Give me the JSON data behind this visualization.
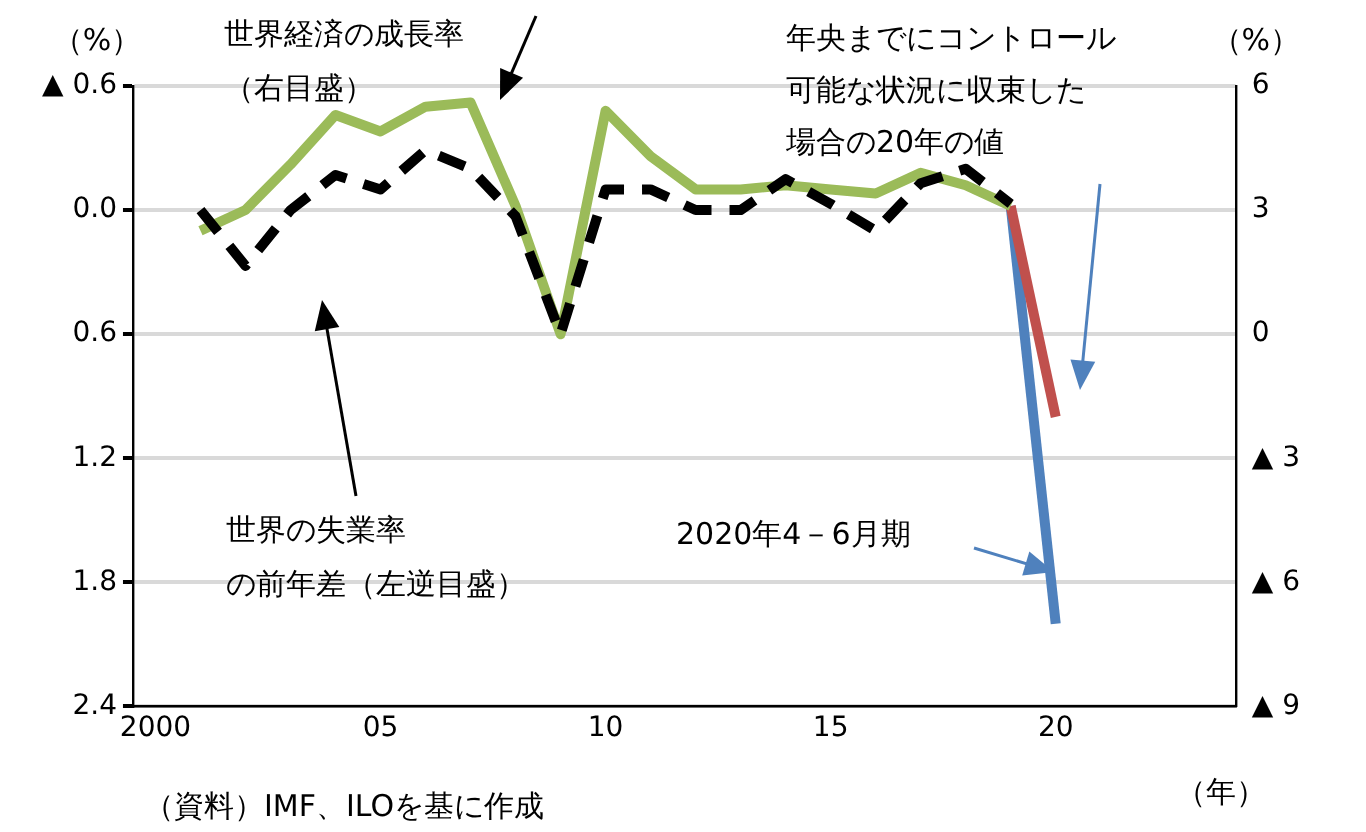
{
  "chart_data": {
    "type": "line",
    "ylabel": "（%）",
    "y2label": "（%）",
    "xlabel": "（年）",
    "xlim": [
      1999.5,
      2024
    ],
    "xticks": [
      {
        "value": 2000,
        "label": "2000"
      },
      {
        "value": 2005,
        "label": "05"
      },
      {
        "value": 2010,
        "label": "10"
      },
      {
        "value": 2015,
        "label": "15"
      },
      {
        "value": 2020,
        "label": "20"
      }
    ],
    "ylim": [
      2.4,
      -0.6
    ],
    "yticks": [
      {
        "value": -0.6,
        "label": "▲ 0.6"
      },
      {
        "value": 0,
        "label": "0.0"
      },
      0.6,
      1.2,
      1.8,
      2.4
    ],
    "y2lim": [
      -9,
      6
    ],
    "y2ticks": [
      6,
      3,
      0,
      {
        "value": -3,
        "label": "▲ 3"
      },
      {
        "value": -6,
        "label": "▲ 6"
      },
      {
        "value": -9,
        "label": "▲ 9"
      }
    ],
    "grid": "y",
    "legend": false,
    "marker": "none",
    "series": [
      {
        "axis": "y",
        "line_style": "dashed",
        "color": "#000000",
        "x": [
          2001,
          2002,
          2003,
          2004,
          2005,
          2006,
          2007,
          2008,
          2009,
          2010,
          2011,
          2012,
          2013,
          2014,
          2015,
          2016,
          2017,
          2018,
          2019
        ],
        "values": [
          0.0,
          0.27,
          0.0,
          -0.17,
          -0.1,
          -0.29,
          -0.2,
          0.03,
          0.6,
          -0.1,
          -0.1,
          0.0,
          0.0,
          -0.15,
          -0.03,
          0.1,
          -0.13,
          -0.2,
          -0.03
        ]
      },
      {
        "axis": "y2",
        "line_style": "solid",
        "color": "#9bbb59",
        "x": [
          2001,
          2002,
          2003,
          2004,
          2005,
          2006,
          2007,
          2008,
          2009,
          2010,
          2011,
          2012,
          2013,
          2014,
          2015,
          2016,
          2017,
          2018,
          2019
        ],
        "values": [
          2.5,
          3.0,
          4.1,
          5.3,
          4.9,
          5.5,
          5.6,
          3.1,
          0.0,
          5.4,
          4.3,
          3.5,
          3.5,
          3.6,
          3.5,
          3.4,
          3.9,
          3.6,
          3.1
        ]
      },
      {
        "axis": "y2",
        "line_style": "solid",
        "color": "#c0504d",
        "x": [
          2019,
          2020
        ],
        "values": [
          3.1,
          -2.0
        ]
      },
      {
        "axis": "y2",
        "line_style": "solid",
        "color": "#4f81bd",
        "x": [
          2019,
          2020
        ],
        "values": [
          3.1,
          -7.0
        ]
      }
    ],
    "annotations": [
      "世界経済の成長率（右目盛）",
      "世界の失業率の前年差（左逆目盛）",
      "年央までにコントロール可能な状況に収束した場合の20年の値",
      "2020年4－6月期",
      "（資料）IMF、ILOを基に作成"
    ]
  }
}
